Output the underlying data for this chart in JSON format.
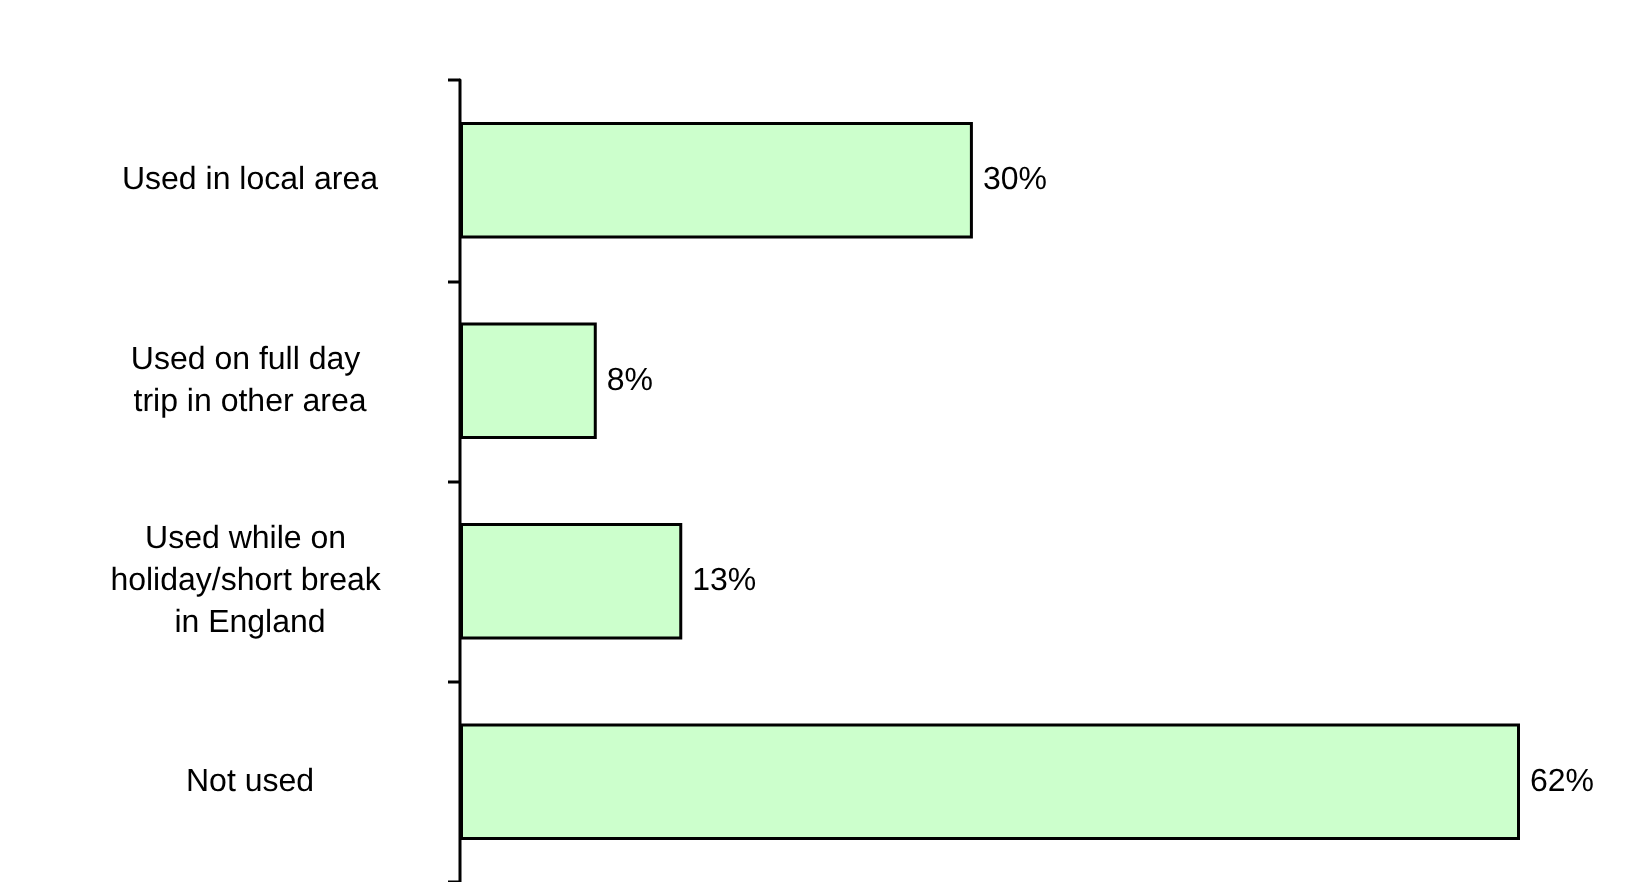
{
  "chart_data": {
    "type": "bar",
    "orientation": "horizontal",
    "categories": [
      "Used in local area",
      "Used on full day trip in other area",
      "Used while on holiday/short break in England",
      "Not used"
    ],
    "values": [
      30,
      8,
      13,
      62
    ],
    "value_labels": [
      "30%",
      "8%",
      "13%",
      "62%"
    ],
    "color": "#ccffcc",
    "grid": false,
    "tick_labels": "y"
  }
}
